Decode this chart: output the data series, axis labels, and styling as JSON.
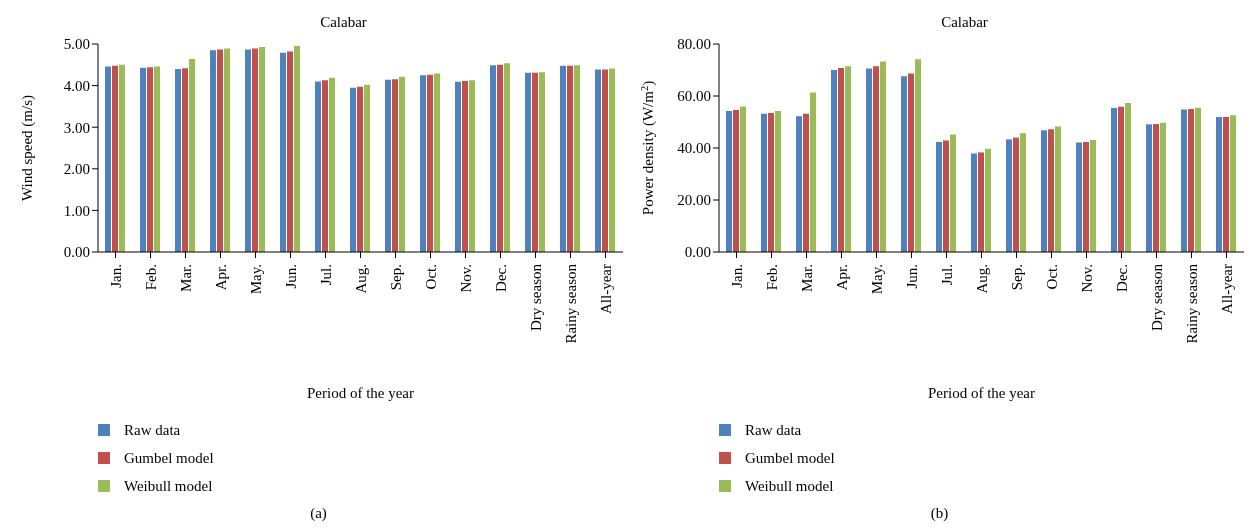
{
  "chart_data": [
    {
      "type": "bar",
      "title": "Calabar",
      "xlabel": "Period of the year",
      "ylabel": "Wind speed (m/s)",
      "annotations": [
        "(a)"
      ],
      "categories": [
        "Jan.",
        "Feb.",
        "Mar.",
        "Apr.",
        "May.",
        "Jun.",
        "Jul.",
        "Aug.",
        "Sep.",
        "Oct.",
        "Nov.",
        "Dec.",
        "Dry season",
        "Rainy season",
        "All-year"
      ],
      "series": [
        {
          "name": "Raw data",
          "color": "#4f81bd",
          "values": [
            4.46,
            4.43,
            4.4,
            4.85,
            4.87,
            4.79,
            4.1,
            3.95,
            4.14,
            4.25,
            4.09,
            4.49,
            4.31,
            4.48,
            4.39
          ]
        },
        {
          "name": "Gumbel model",
          "color": "#c0504d",
          "values": [
            4.48,
            4.44,
            4.42,
            4.87,
            4.89,
            4.82,
            4.13,
            3.97,
            4.15,
            4.26,
            4.11,
            4.5,
            4.31,
            4.48,
            4.39
          ]
        },
        {
          "name": "Weibull model",
          "color": "#9bbb59",
          "values": [
            4.5,
            4.46,
            4.64,
            4.89,
            4.93,
            4.95,
            4.19,
            4.02,
            4.21,
            4.29,
            4.13,
            4.54,
            4.32,
            4.49,
            4.41
          ]
        }
      ],
      "ylim": [
        0,
        5
      ],
      "yticks": [
        {
          "value": 0,
          "label": "0.00"
        },
        {
          "value": 1,
          "label": "1.00"
        },
        {
          "value": 2,
          "label": "2.00"
        },
        {
          "value": 3,
          "label": "3.00"
        },
        {
          "value": 4,
          "label": "4.00"
        },
        {
          "value": 5,
          "label": "5.00"
        }
      ],
      "grid": false,
      "legend": "bottom"
    },
    {
      "type": "bar",
      "title": "Calabar",
      "xlabel": "Period of the year",
      "ylabel": "Power density (W/m$^{2}$)",
      "annotations": [
        "(b)"
      ],
      "categories": [
        "Jan.",
        "Feb.",
        "Mar.",
        "Apr.",
        "May.",
        "Jun.",
        "Jul.",
        "Aug.",
        "Sep.",
        "Oct.",
        "Nov.",
        "Dec.",
        "Dry season",
        "Rainy season",
        "All-year"
      ],
      "series": [
        {
          "name": "Raw data",
          "color": "#4f81bd",
          "values": [
            54.2,
            53.2,
            52.2,
            70.0,
            70.6,
            67.6,
            42.3,
            37.9,
            43.3,
            46.8,
            42.1,
            55.4,
            49.1,
            54.8,
            51.9
          ]
        },
        {
          "name": "Gumbel model",
          "color": "#c0504d",
          "values": [
            54.6,
            53.5,
            53.2,
            70.8,
            71.4,
            68.7,
            42.9,
            38.3,
            44.0,
            47.2,
            42.3,
            55.9,
            49.2,
            55.0,
            51.9
          ]
        },
        {
          "name": "Weibull model",
          "color": "#9bbb59",
          "values": [
            56.0,
            54.2,
            61.3,
            71.4,
            73.3,
            74.1,
            45.2,
            39.7,
            45.7,
            48.3,
            43.1,
            57.3,
            49.7,
            55.5,
            52.6
          ]
        }
      ],
      "ylim": [
        0,
        80
      ],
      "yticks": [
        {
          "value": 0,
          "label": "0.00"
        },
        {
          "value": 20,
          "label": "20.00"
        },
        {
          "value": 40,
          "label": "40.00"
        },
        {
          "value": 60,
          "label": "60.00"
        },
        {
          "value": 80,
          "label": "80.00"
        }
      ],
      "grid": false,
      "legend": "bottom"
    }
  ]
}
